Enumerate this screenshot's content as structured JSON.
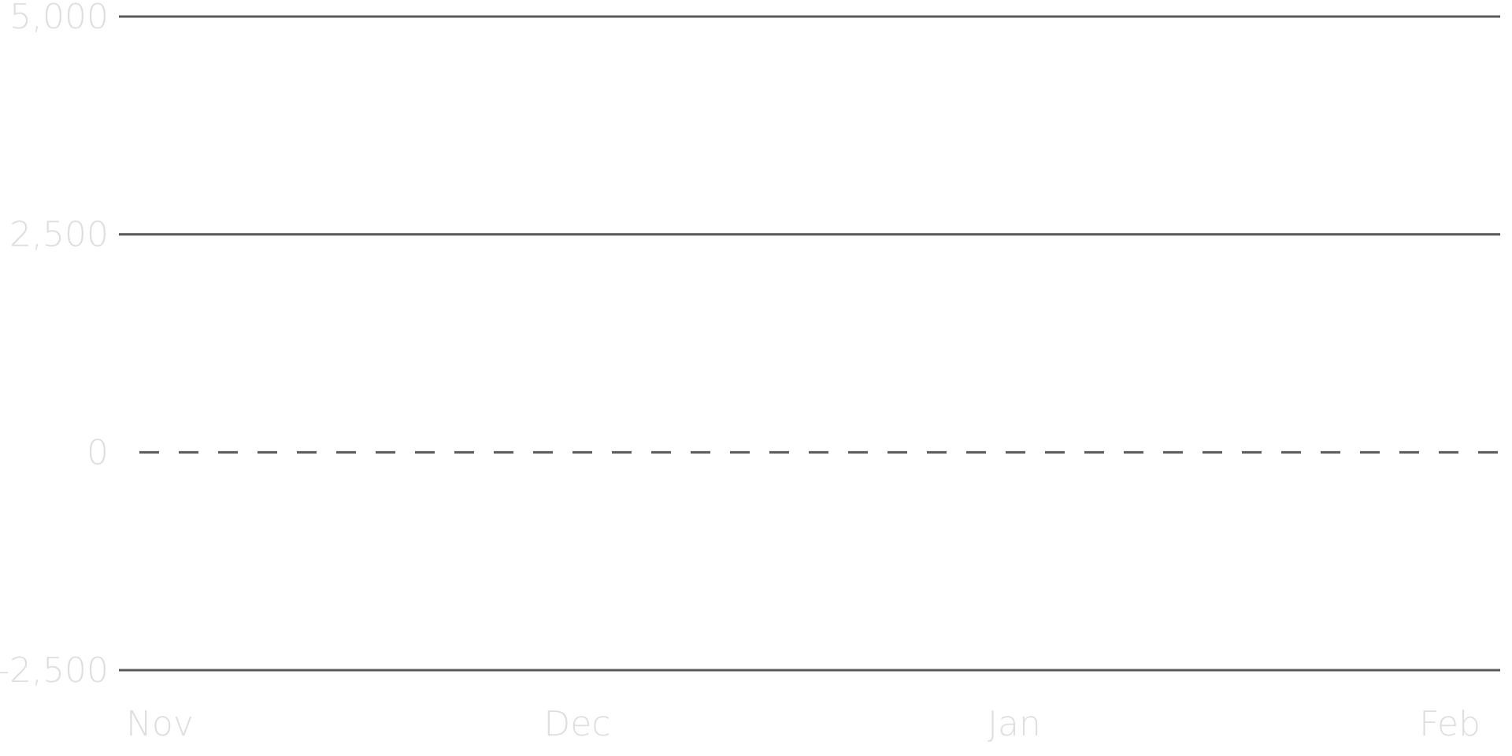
{
  "chart_data": {
    "type": "line",
    "title": "",
    "xlabel": "",
    "ylabel": "",
    "ylim": [
      -2500,
      5000
    ],
    "y_ticks": [
      5000,
      2500,
      0,
      -2500
    ],
    "y_tick_labels": [
      "5,000",
      "2,500",
      "0",
      "-2,500"
    ],
    "x_tick_labels": [
      "Nov",
      "Dec",
      "Jan",
      "Feb"
    ],
    "series": [],
    "grid": true,
    "zero_line_style": "dashed"
  },
  "colors": {
    "gridline": "#5a5a5a",
    "label": "#dedede",
    "background": "#ffffff"
  }
}
